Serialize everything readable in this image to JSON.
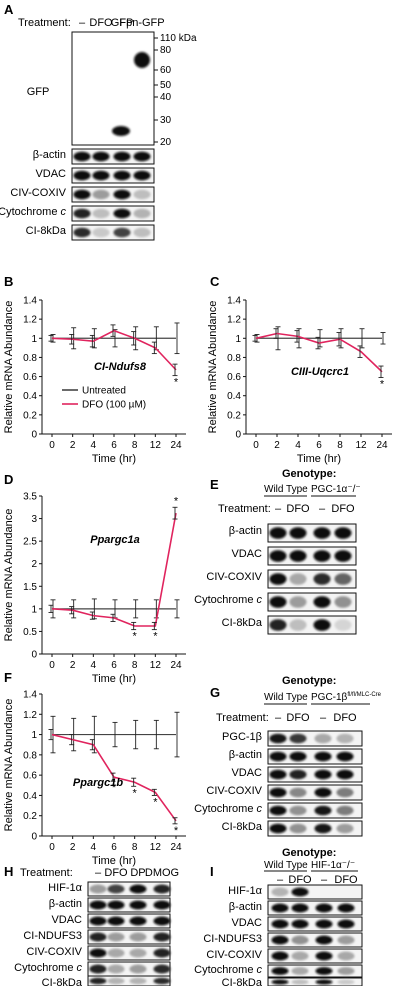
{
  "panels": {
    "A": {
      "letter": "A",
      "treatment_label": "Treatment:",
      "lanes": [
        "–",
        "DFO",
        "GFP",
        "Fpn-GFP"
      ],
      "blot_gfp_label": "GFP",
      "markers": [
        "110 kDa",
        "80",
        "60",
        "50",
        "40",
        "30",
        "20"
      ],
      "row_labels": [
        "β-actin",
        "VDAC",
        "CIV-COXIV",
        "Cytochrome c",
        "CI-8kDa"
      ]
    },
    "B": {
      "letter": "B",
      "gene": "CI-Ndufs8"
    },
    "C": {
      "letter": "C",
      "gene": "CIII-Uqcrc1"
    },
    "D": {
      "letter": "D",
      "gene": "Ppargc1a"
    },
    "F": {
      "letter": "F",
      "gene": "Ppargc1b"
    },
    "E": {
      "letter": "E",
      "genotype_label": "Genotype:",
      "genotypes": [
        "Wild Type",
        "PGC-1α⁻/⁻"
      ],
      "treatment_label": "Treatment:",
      "lanes": [
        "–",
        "DFO",
        "–",
        "DFO"
      ],
      "row_labels": [
        "β-actin",
        "VDAC",
        "CIV-COXIV",
        "Cytochrome c",
        "CI-8kDa"
      ]
    },
    "G": {
      "letter": "G",
      "genotype_label": "Genotype:",
      "genotypes": [
        "Wild Type",
        "PGC-1β^fl/fl/MLC-Cre"
      ],
      "treatment_label": "Treatment:",
      "lanes": [
        "–",
        "DFO",
        "–",
        "DFO"
      ],
      "row_labels": [
        "PGC-1β",
        "β-actin",
        "VDAC",
        "CIV-COXIV",
        "Cytochrome c",
        "CI-8kDa"
      ]
    },
    "H": {
      "letter": "H",
      "treatment_label": "Treatment:",
      "lanes": [
        "–",
        "DFO",
        "DP",
        "DMOG"
      ],
      "row_labels": [
        "HIF-1α",
        "β-actin",
        "VDAC",
        "CI-NDUFS3",
        "CIV-COXIV",
        "Cytochrome c",
        "CI-8kDa"
      ]
    },
    "I": {
      "letter": "I",
      "genotype_label": "Genotype:",
      "genotypes": [
        "Wild Type",
        "HIF-1α⁻/⁻"
      ],
      "lanes": [
        "–",
        "DFO",
        "–",
        "DFO"
      ],
      "row_labels": [
        "HIF-1α",
        "β-actin",
        "VDAC",
        "CI-NDUFS3",
        "CIV-COXIV",
        "Cytochrome c",
        "CI-8kDa"
      ]
    }
  },
  "colors": {
    "untreated": "#444444",
    "dfo": "#e0245e"
  },
  "chart_data": [
    {
      "panel": "B",
      "type": "line",
      "x": [
        0,
        2,
        4,
        6,
        8,
        12,
        24
      ],
      "xlabel": "Time (hr)",
      "ylabel": "Relative mRNA Abundance",
      "ylim": [
        0,
        1.4
      ],
      "yticks": [
        0,
        0.2,
        0.4,
        0.6,
        0.8,
        1,
        1.2,
        1.4
      ],
      "legend": [
        "Untreated",
        "DFO (100 µM)"
      ],
      "series": [
        {
          "name": "Untreated",
          "values": [
            1,
            1,
            1,
            1,
            1,
            1,
            1
          ],
          "errors": [
            0.04,
            0.11,
            0.1,
            0.09,
            0.12,
            0.12,
            0.16
          ]
        },
        {
          "name": "DFO (100 µM)",
          "values": [
            1,
            0.99,
            0.97,
            1.08,
            1.0,
            0.9,
            0.67
          ],
          "errors": [
            0.03,
            0.05,
            0.06,
            0.06,
            0.07,
            0.06,
            0.06
          ],
          "significant": [
            24
          ]
        }
      ]
    },
    {
      "panel": "C",
      "type": "line",
      "x": [
        0,
        2,
        4,
        6,
        8,
        12,
        24
      ],
      "xlabel": "Time (hr)",
      "ylabel": "Relative mRNA Abundance",
      "ylim": [
        0,
        1.4
      ],
      "yticks": [
        0,
        0.2,
        0.4,
        0.6,
        0.8,
        1,
        1.2,
        1.4
      ],
      "series": [
        {
          "name": "Untreated",
          "values": [
            1,
            1,
            1,
            1,
            1,
            1,
            1
          ],
          "errors": [
            0.04,
            0.12,
            0.1,
            0.09,
            0.1,
            0.1,
            0.06
          ]
        },
        {
          "name": "DFO (100 µM)",
          "values": [
            1,
            1.05,
            1.02,
            0.95,
            0.99,
            0.86,
            0.65
          ],
          "errors": [
            0.03,
            0.05,
            0.06,
            0.06,
            0.07,
            0.06,
            0.06
          ],
          "significant": [
            24
          ]
        }
      ]
    },
    {
      "panel": "D",
      "type": "line",
      "x": [
        0,
        2,
        4,
        6,
        8,
        12,
        24
      ],
      "xlabel": "Time (hr)",
      "ylabel": "Relative mRNA Abundance",
      "ylim": [
        0,
        3.5
      ],
      "yticks": [
        0,
        0.5,
        1,
        1.5,
        2,
        2.5,
        3,
        3.5
      ],
      "series": [
        {
          "name": "Untreated",
          "values": [
            1,
            1,
            1,
            1,
            1,
            1,
            1
          ],
          "errors": [
            0.2,
            0.2,
            0.22,
            0.2,
            0.2,
            0.2,
            0.2
          ]
        },
        {
          "name": "DFO (100 µM)",
          "values": [
            1,
            0.97,
            0.85,
            0.8,
            0.62,
            0.62,
            3.12
          ],
          "errors": [
            0.08,
            0.08,
            0.08,
            0.08,
            0.08,
            0.08,
            0.13
          ],
          "significant": [
            8,
            12,
            24
          ]
        }
      ]
    },
    {
      "panel": "F",
      "type": "line",
      "x": [
        0,
        2,
        4,
        6,
        8,
        12,
        24
      ],
      "xlabel": "Time (hr)",
      "ylabel": "Relative mRNA Abundance",
      "ylim": [
        0,
        1.4
      ],
      "yticks": [
        0,
        0.2,
        0.4,
        0.6,
        0.8,
        1,
        1.2,
        1.4
      ],
      "series": [
        {
          "name": "Untreated",
          "values": [
            1,
            1,
            1,
            1,
            1,
            1,
            1
          ],
          "errors": [
            0.18,
            0.16,
            0.18,
            0.12,
            0.14,
            0.14,
            0.22
          ]
        },
        {
          "name": "DFO (100 µM)",
          "values": [
            1,
            0.95,
            0.9,
            0.58,
            0.53,
            0.43,
            0.15
          ],
          "errors": [
            0.05,
            0.05,
            0.05,
            0.04,
            0.04,
            0.03,
            0.03
          ],
          "significant": [
            6,
            8,
            12,
            24
          ]
        }
      ]
    }
  ]
}
